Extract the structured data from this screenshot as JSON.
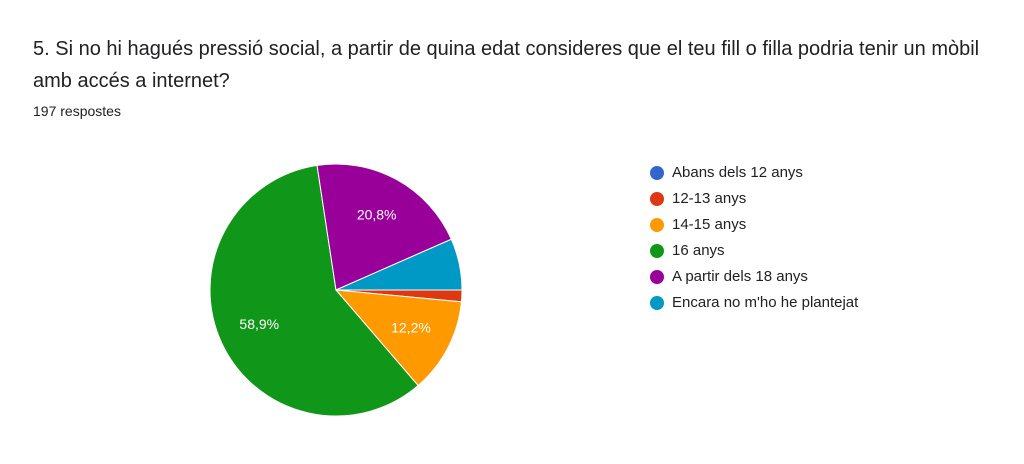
{
  "chart_data": {
    "type": "pie",
    "title": "5. Si no hi hagués pressió social, a partir de quina edat consideres que el teu fill o filla podria tenir un mòbil amb accés a internet?",
    "subtitle": "197 respostes",
    "categories": [
      "Abans dels 12 anys",
      "12-13 anys",
      "14-15 anys",
      "16 anys",
      "A partir dels 18 anys",
      "Encara no m'ho he plantejat"
    ],
    "values": [
      0,
      1.5,
      12.2,
      58.9,
      20.8,
      6.6
    ],
    "value_labels": [
      null,
      null,
      "12,2%",
      "58,9%",
      "20,8%",
      null
    ],
    "colors": [
      "#3366cc",
      "#dc3912",
      "#ff9900",
      "#109618",
      "#990099",
      "#0099c6"
    ],
    "legend": "right"
  }
}
